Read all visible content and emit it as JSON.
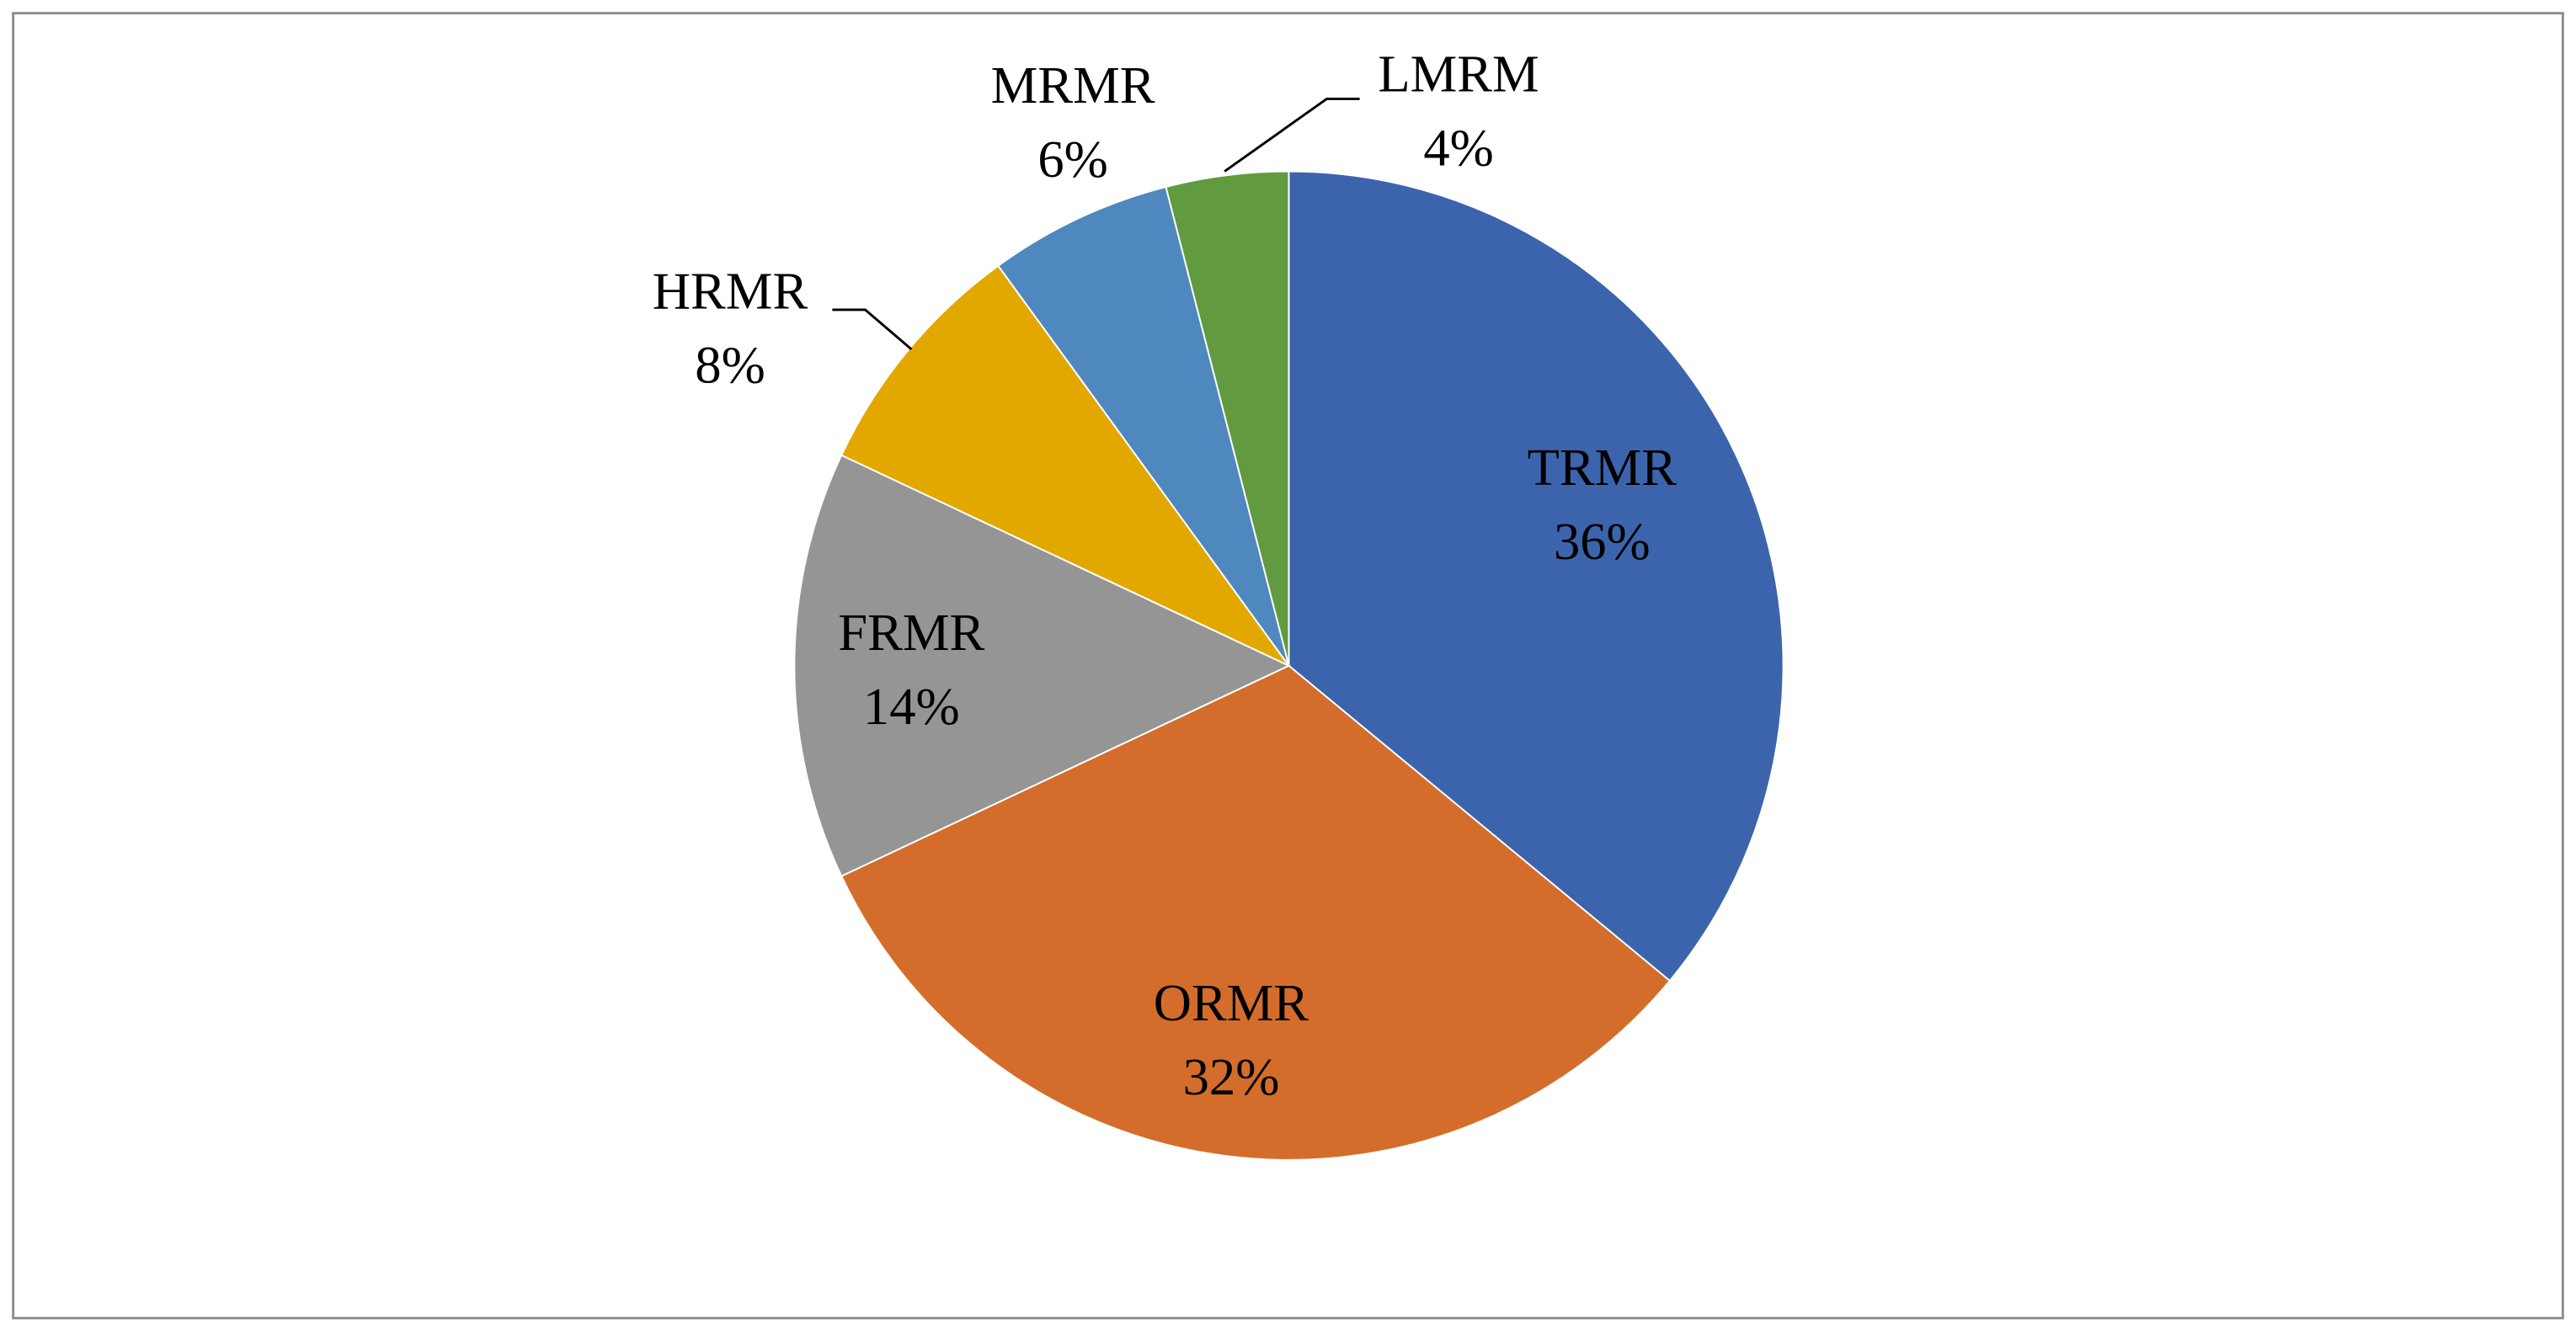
{
  "chart_data": {
    "type": "pie",
    "categories": [
      "TRMR",
      "ORMR",
      "FRMR",
      "HRMR",
      "MRMR",
      "LMRM"
    ],
    "values": [
      36,
      32,
      14,
      8,
      6,
      4
    ],
    "value_labels": [
      "36%",
      "32%",
      "14%",
      "8%",
      "6%",
      "4%"
    ],
    "colors": [
      "#3c64ad",
      "#d46d2b",
      "#959595",
      "#e2a800",
      "#4f88be",
      "#629a40"
    ]
  }
}
